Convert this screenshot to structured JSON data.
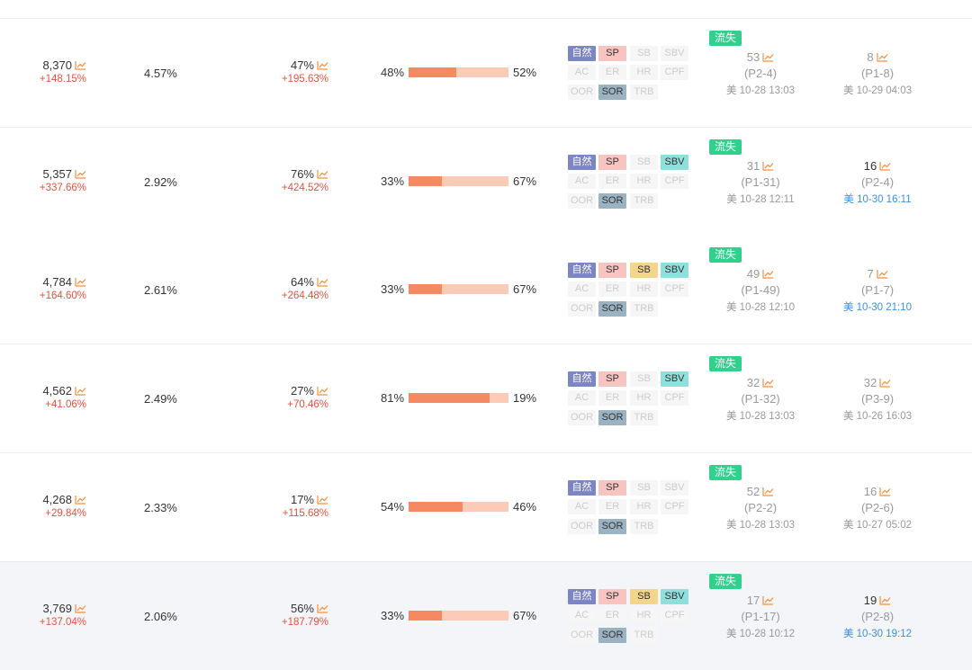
{
  "colors": {
    "trend_icon": "#f5903c",
    "change_red": "#e8513b",
    "bar_fill": "#f58a62",
    "bar_track": "#fccbb8",
    "lost_badge": "#2fd18d",
    "tag_ziran": "#7d86c4",
    "tag_sp": "#f7c4c2",
    "tag_sb": "#f4d58c",
    "tag_sbv": "#8fe0dc",
    "tag_sor": "#9ab2c2",
    "link_blue": "#3b8fe5"
  },
  "tag_labels": [
    "自然",
    "SP",
    "SB",
    "SBV",
    "AC",
    "ER",
    "HR",
    "CPF",
    "OOR",
    "SOR",
    "TRB"
  ],
  "rows": [
    {
      "search_volume": "8,370",
      "search_volume_change": "+148.15%",
      "share": "4.57%",
      "click_share": "47%",
      "click_share_change": "+195.63%",
      "ratio_left": "48%",
      "ratio_right": "52%",
      "ratio_value": 0.48,
      "tags_active": {
        "自然": true,
        "SP": true,
        "SB": false,
        "SBV": false,
        "AC": false,
        "ER": false,
        "HR": false,
        "CPF": false,
        "OOR": false,
        "SOR": true,
        "TRB": false
      },
      "status_badge": "流失",
      "rank1": {
        "num": "53",
        "page": "(P2-4)",
        "date": "美 10-28 13:03",
        "style": "gray",
        "date_style": "gray"
      },
      "rank2": {
        "num": "8",
        "page": "(P1-8)",
        "date": "美 10-29 04:03",
        "style": "gray",
        "date_style": "gray"
      }
    },
    {
      "search_volume": "5,357",
      "search_volume_change": "+337.66%",
      "share": "2.92%",
      "click_share": "76%",
      "click_share_change": "+424.52%",
      "ratio_left": "33%",
      "ratio_right": "67%",
      "ratio_value": 0.33,
      "tags_active": {
        "自然": true,
        "SP": true,
        "SB": false,
        "SBV": true,
        "AC": false,
        "ER": false,
        "HR": false,
        "CPF": false,
        "OOR": false,
        "SOR": true,
        "TRB": false
      },
      "status_badge": "流失",
      "rank1": {
        "num": "31",
        "page": "(P1-31)",
        "date": "美 10-28 12:11",
        "style": "gray",
        "date_style": "gray"
      },
      "rank2": {
        "num": "16",
        "page": "(P2-4)",
        "date": "美 10-30 16:11",
        "style": "dark",
        "date_style": "blue"
      }
    },
    {
      "search_volume": "4,784",
      "search_volume_change": "+164.60%",
      "share": "2.61%",
      "click_share": "64%",
      "click_share_change": "+264.48%",
      "ratio_left": "33%",
      "ratio_right": "67%",
      "ratio_value": 0.33,
      "tags_active": {
        "自然": true,
        "SP": true,
        "SB": true,
        "SBV": true,
        "AC": false,
        "ER": false,
        "HR": false,
        "CPF": false,
        "OOR": false,
        "SOR": true,
        "TRB": false
      },
      "status_badge": "流失",
      "rank1": {
        "num": "49",
        "page": "(P1-49)",
        "date": "美 10-28 12:10",
        "style": "gray",
        "date_style": "gray"
      },
      "rank2": {
        "num": "7",
        "page": "(P1-7)",
        "date": "美 10-30 21:10",
        "style": "gray",
        "date_style": "blue"
      }
    },
    {
      "search_volume": "4,562",
      "search_volume_change": "+41.06%",
      "share": "2.49%",
      "click_share": "27%",
      "click_share_change": "+70.46%",
      "ratio_left": "81%",
      "ratio_right": "19%",
      "ratio_value": 0.81,
      "tags_active": {
        "自然": true,
        "SP": true,
        "SB": false,
        "SBV": true,
        "AC": false,
        "ER": false,
        "HR": false,
        "CPF": false,
        "OOR": false,
        "SOR": true,
        "TRB": false
      },
      "status_badge": "流失",
      "rank1": {
        "num": "32",
        "page": "(P1-32)",
        "date": "美 10-28 13:03",
        "style": "gray",
        "date_style": "gray"
      },
      "rank2": {
        "num": "32",
        "page": "(P3-9)",
        "date": "美 10-26 16:03",
        "style": "gray",
        "date_style": "gray"
      }
    },
    {
      "search_volume": "4,268",
      "search_volume_change": "+29.84%",
      "share": "2.33%",
      "click_share": "17%",
      "click_share_change": "+115.68%",
      "ratio_left": "54%",
      "ratio_right": "46%",
      "ratio_value": 0.54,
      "tags_active": {
        "自然": true,
        "SP": true,
        "SB": false,
        "SBV": false,
        "AC": false,
        "ER": false,
        "HR": false,
        "CPF": false,
        "OOR": false,
        "SOR": true,
        "TRB": false
      },
      "status_badge": "流失",
      "rank1": {
        "num": "52",
        "page": "(P2-2)",
        "date": "美 10-28 13:03",
        "style": "gray",
        "date_style": "gray"
      },
      "rank2": {
        "num": "16",
        "page": "(P2-6)",
        "date": "美 10-27 05:02",
        "style": "gray",
        "date_style": "gray"
      }
    },
    {
      "search_volume": "3,769",
      "search_volume_change": "+137.04%",
      "share": "2.06%",
      "click_share": "56%",
      "click_share_change": "+187.79%",
      "ratio_left": "33%",
      "ratio_right": "67%",
      "ratio_value": 0.33,
      "tags_active": {
        "自然": true,
        "SP": true,
        "SB": true,
        "SBV": true,
        "AC": false,
        "ER": false,
        "HR": false,
        "CPF": false,
        "OOR": false,
        "SOR": true,
        "TRB": false
      },
      "status_badge": "流失",
      "rank1": {
        "num": "17",
        "page": "(P1-17)",
        "date": "美 10-28 10:12",
        "style": "gray",
        "date_style": "gray"
      },
      "rank2": {
        "num": "19",
        "page": "(P2-8)",
        "date": "美 10-30 19:12",
        "style": "dark",
        "date_style": "blue"
      }
    }
  ]
}
